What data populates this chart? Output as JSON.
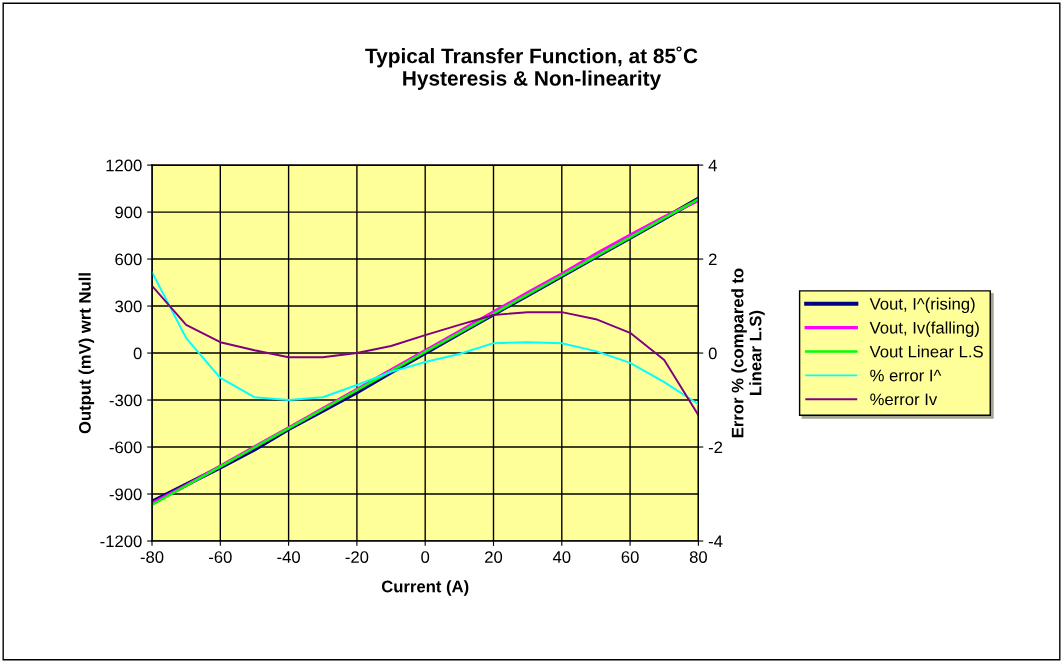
{
  "chart_data": {
    "type": "line",
    "title": "Typical Transfer Function, at 85˚C\nHysteresis & Non-linearity",
    "xlabel": "Current (A)",
    "ylabel": "Output (mV) wrt Null",
    "y2label": "Error % (compared to\nLinear L.S)",
    "x": [
      -80,
      -70,
      -60,
      -50,
      -40,
      -30,
      -20,
      -10,
      0,
      10,
      20,
      30,
      40,
      50,
      60,
      70,
      80
    ],
    "series": [
      {
        "name": "Vout, I^(rising)",
        "color": "#000080",
        "values": [
          -950,
          -840,
          -730,
          -615,
          -485,
          -368,
          -250,
          -122,
          0,
          125,
          248,
          370,
          493,
          615,
          737,
          860,
          985
        ]
      },
      {
        "name": "Vout, Iv(falling)",
        "color": "#ff00ff",
        "values": [
          -960,
          -845,
          -722,
          -600,
          -478,
          -356,
          -232,
          -108,
          15,
          138,
          262,
          385,
          505,
          632,
          752,
          868,
          975
        ]
      },
      {
        "name": "Vout Linear L.S",
        "color": "#00ff00",
        "values": [
          -969,
          -847,
          -725,
          -603,
          -481,
          -359,
          -237,
          -115,
          7,
          129,
          251,
          373,
          495,
          617,
          739,
          861,
          983
        ]
      },
      {
        "name": "% error I^",
        "color": "#00ffff",
        "axis": "y2",
        "values": [
          1.72,
          0.32,
          -0.53,
          -0.94,
          -1.0,
          -0.94,
          -0.68,
          -0.4,
          -0.19,
          -0.02,
          0.21,
          0.23,
          0.21,
          0.04,
          -0.21,
          -0.62,
          -1.09
        ]
      },
      {
        "name": "%error Iv",
        "color": "#800080",
        "axis": "y2",
        "values": [
          1.43,
          0.6,
          0.23,
          0.06,
          -0.09,
          -0.09,
          0,
          0.15,
          0.38,
          0.6,
          0.81,
          0.87,
          0.87,
          0.72,
          0.43,
          -0.15,
          -1.32
        ]
      }
    ],
    "xlim": [
      -80,
      80
    ],
    "xticks": [
      -80,
      -60,
      -40,
      -20,
      0,
      20,
      40,
      60,
      80
    ],
    "ylim": [
      -1200,
      1200
    ],
    "yticks": [
      -1200,
      -900,
      -600,
      -300,
      0,
      300,
      600,
      900,
      1200
    ],
    "y2lim": [
      -4,
      4
    ],
    "y2ticks": [
      -4,
      -2,
      0,
      2,
      4
    ],
    "grid": true,
    "legend": "right",
    "marker": "none",
    "line_style": "solid"
  }
}
